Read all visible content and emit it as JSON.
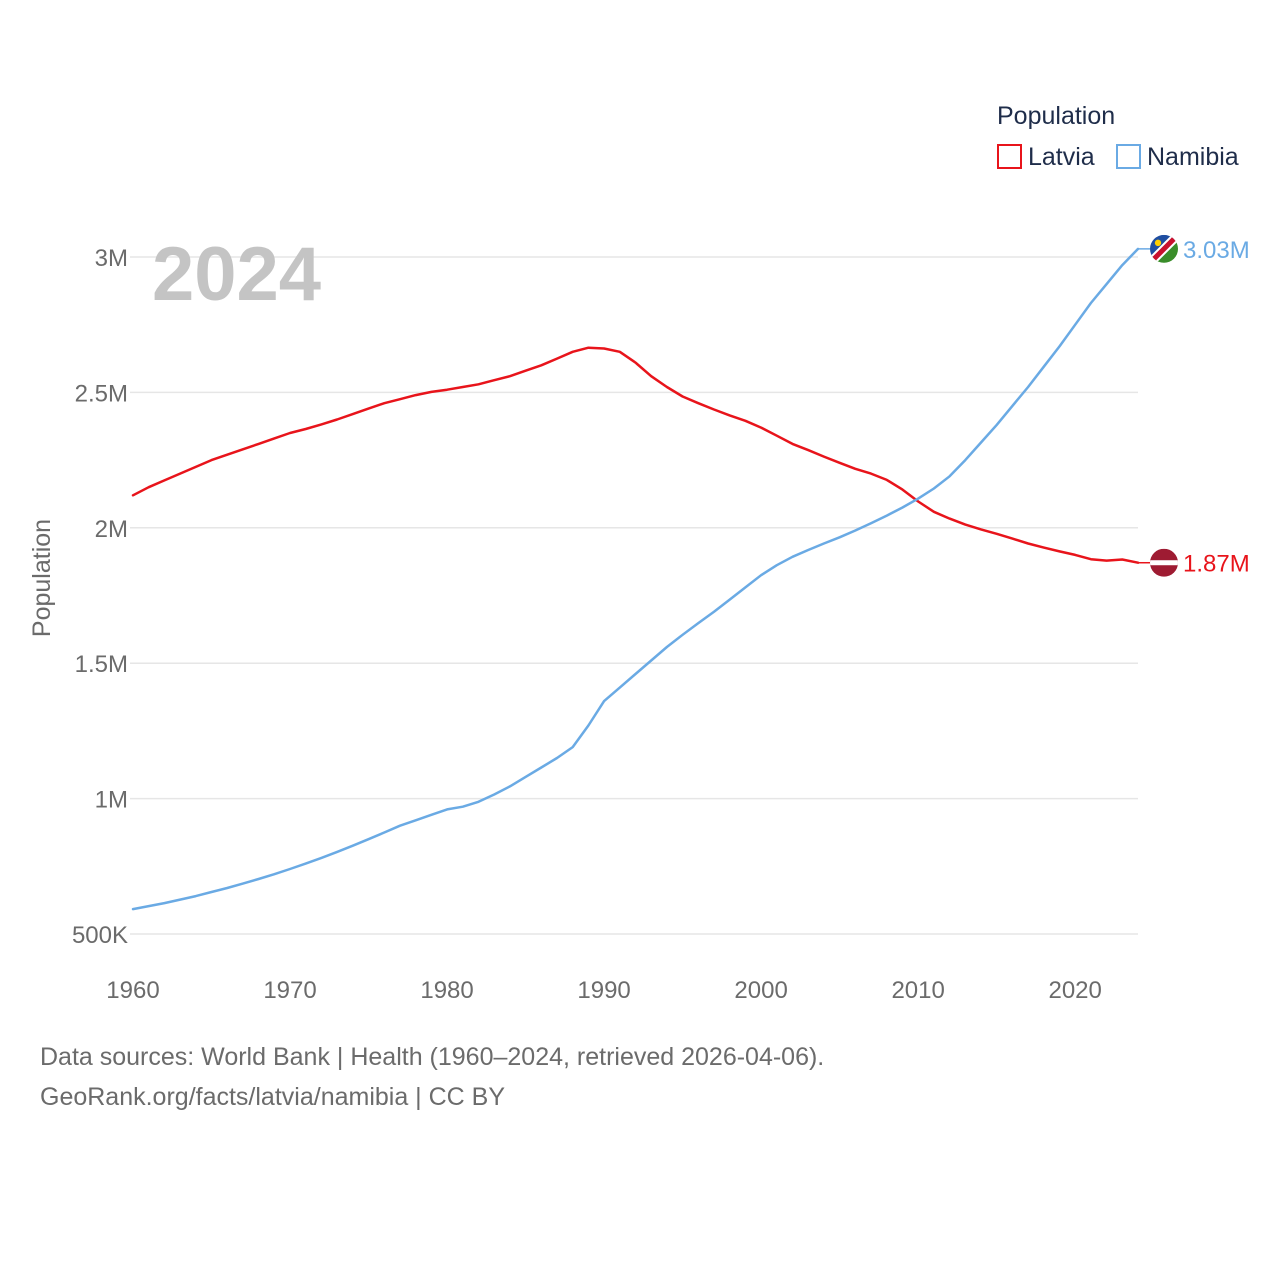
{
  "chart_data": {
    "type": "line",
    "title": "Population",
    "year_label": "2024",
    "ylabel": "Population",
    "xlabel": "",
    "xlim": [
      1960,
      2024
    ],
    "ylim": [
      500000,
      3000000
    ],
    "x_ticks": [
      {
        "value": 1960,
        "label": "1960"
      },
      {
        "value": 1970,
        "label": "1970"
      },
      {
        "value": 1980,
        "label": "1980"
      },
      {
        "value": 1990,
        "label": "1990"
      },
      {
        "value": 2000,
        "label": "2000"
      },
      {
        "value": 2010,
        "label": "2010"
      },
      {
        "value": 2020,
        "label": "2020"
      }
    ],
    "y_ticks": [
      {
        "value": 500000,
        "label": "500K"
      },
      {
        "value": 1000000,
        "label": "1M"
      },
      {
        "value": 1500000,
        "label": "1.5M"
      },
      {
        "value": 2000000,
        "label": "2M"
      },
      {
        "value": 2500000,
        "label": "2.5M"
      },
      {
        "value": 3000000,
        "label": "3M"
      }
    ],
    "legend": {
      "title": "Population",
      "position": "top-right"
    },
    "series": [
      {
        "name": "Latvia",
        "color": "#e8141b",
        "end_label": "1.87M",
        "flag": "latvia-flag",
        "points": [
          [
            1960,
            2120000
          ],
          [
            1961,
            2150000
          ],
          [
            1962,
            2175000
          ],
          [
            1963,
            2200000
          ],
          [
            1964,
            2225000
          ],
          [
            1965,
            2250000
          ],
          [
            1966,
            2270000
          ],
          [
            1967,
            2290000
          ],
          [
            1968,
            2310000
          ],
          [
            1969,
            2330000
          ],
          [
            1970,
            2350000
          ],
          [
            1971,
            2365000
          ],
          [
            1972,
            2382000
          ],
          [
            1973,
            2400000
          ],
          [
            1974,
            2420000
          ],
          [
            1975,
            2440000
          ],
          [
            1976,
            2460000
          ],
          [
            1977,
            2475000
          ],
          [
            1978,
            2490000
          ],
          [
            1979,
            2502000
          ],
          [
            1980,
            2510000
          ],
          [
            1981,
            2520000
          ],
          [
            1982,
            2530000
          ],
          [
            1983,
            2545000
          ],
          [
            1984,
            2560000
          ],
          [
            1985,
            2580000
          ],
          [
            1986,
            2600000
          ],
          [
            1987,
            2625000
          ],
          [
            1988,
            2650000
          ],
          [
            1989,
            2665000
          ],
          [
            1990,
            2662000
          ],
          [
            1991,
            2650000
          ],
          [
            1992,
            2610000
          ],
          [
            1993,
            2560000
          ],
          [
            1994,
            2520000
          ],
          [
            1995,
            2485000
          ],
          [
            1996,
            2460000
          ],
          [
            1997,
            2437000
          ],
          [
            1998,
            2415000
          ],
          [
            1999,
            2395000
          ],
          [
            2000,
            2370000
          ],
          [
            2001,
            2340000
          ],
          [
            2002,
            2310000
          ],
          [
            2003,
            2287000
          ],
          [
            2004,
            2263000
          ],
          [
            2005,
            2240000
          ],
          [
            2006,
            2218000
          ],
          [
            2007,
            2200000
          ],
          [
            2008,
            2177000
          ],
          [
            2009,
            2141000
          ],
          [
            2010,
            2097000
          ],
          [
            2011,
            2059000
          ],
          [
            2012,
            2034000
          ],
          [
            2013,
            2012000
          ],
          [
            2014,
            1994000
          ],
          [
            2015,
            1978000
          ],
          [
            2016,
            1960000
          ],
          [
            2017,
            1942000
          ],
          [
            2018,
            1927000
          ],
          [
            2019,
            1913000
          ],
          [
            2020,
            1900000
          ],
          [
            2021,
            1884000
          ],
          [
            2022,
            1879000
          ],
          [
            2023,
            1883000
          ],
          [
            2024,
            1871000
          ]
        ]
      },
      {
        "name": "Namibia",
        "color": "#6aaae4",
        "end_label": "3.03M",
        "flag": "namibia-flag",
        "points": [
          [
            1960,
            592000
          ],
          [
            1961,
            603000
          ],
          [
            1962,
            614000
          ],
          [
            1963,
            627000
          ],
          [
            1964,
            640000
          ],
          [
            1965,
            655000
          ],
          [
            1966,
            670000
          ],
          [
            1967,
            686000
          ],
          [
            1968,
            703000
          ],
          [
            1969,
            721000
          ],
          [
            1970,
            740000
          ],
          [
            1971,
            760000
          ],
          [
            1972,
            781000
          ],
          [
            1973,
            803000
          ],
          [
            1974,
            826000
          ],
          [
            1975,
            850000
          ],
          [
            1976,
            875000
          ],
          [
            1977,
            900000
          ],
          [
            1978,
            920000
          ],
          [
            1979,
            940000
          ],
          [
            1980,
            960000
          ],
          [
            1981,
            970000
          ],
          [
            1982,
            988000
          ],
          [
            1983,
            1015000
          ],
          [
            1984,
            1045000
          ],
          [
            1985,
            1080000
          ],
          [
            1986,
            1115000
          ],
          [
            1987,
            1150000
          ],
          [
            1988,
            1190000
          ],
          [
            1989,
            1270000
          ],
          [
            1990,
            1360000
          ],
          [
            1991,
            1410000
          ],
          [
            1992,
            1460000
          ],
          [
            1993,
            1510000
          ],
          [
            1994,
            1560000
          ],
          [
            1995,
            1605000
          ],
          [
            1996,
            1648000
          ],
          [
            1997,
            1690000
          ],
          [
            1998,
            1735000
          ],
          [
            1999,
            1780000
          ],
          [
            2000,
            1825000
          ],
          [
            2001,
            1862000
          ],
          [
            2002,
            1893000
          ],
          [
            2003,
            1918000
          ],
          [
            2004,
            1942000
          ],
          [
            2005,
            1965000
          ],
          [
            2006,
            1990000
          ],
          [
            2007,
            2017000
          ],
          [
            2008,
            2045000
          ],
          [
            2009,
            2075000
          ],
          [
            2010,
            2108000
          ],
          [
            2011,
            2145000
          ],
          [
            2012,
            2190000
          ],
          [
            2013,
            2250000
          ],
          [
            2014,
            2315000
          ],
          [
            2015,
            2380000
          ],
          [
            2016,
            2450000
          ],
          [
            2017,
            2520000
          ],
          [
            2018,
            2595000
          ],
          [
            2019,
            2670000
          ],
          [
            2020,
            2750000
          ],
          [
            2021,
            2830000
          ],
          [
            2022,
            2900000
          ],
          [
            2023,
            2970000
          ],
          [
            2024,
            3030000
          ]
        ]
      }
    ]
  },
  "footer": {
    "sources": "Data sources: World Bank | Health (1960–2024, retrieved 2026-04-06).",
    "link": "GeoRank.org/facts/latvia/namibia | CC BY"
  }
}
